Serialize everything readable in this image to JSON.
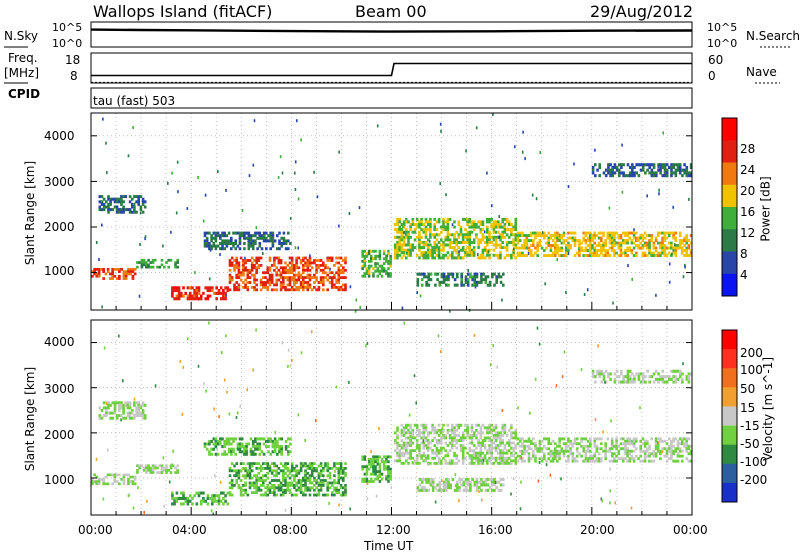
{
  "header": {
    "station": "Wallops Island (fitACF)",
    "beam": "Beam 00",
    "date": "29/Aug/2012"
  },
  "noise_panel": {
    "left_label": "N.Sky",
    "right_label": "N.Search",
    "tick_top": "10^5",
    "tick_bottom": "10^0"
  },
  "freq_panel": {
    "left_label": "Freq.",
    "left_unit": "[MHz]",
    "left_ticks": [
      "18",
      "8"
    ],
    "right_label": "Nave",
    "right_ticks": [
      "60",
      "0"
    ],
    "cpid_label": "CPID",
    "cpid_value": "tau (fast) 503"
  },
  "power_panel": {
    "ylabel": "Slant Range [km]",
    "yticks": [
      "4000",
      "3000",
      "2000",
      "1000"
    ],
    "colorbar_label": "Power [dB]",
    "colorbar_ticks": [
      "28",
      "24",
      "20",
      "16",
      "12",
      "8",
      "4"
    ],
    "colorbar_colors": [
      "#0a14f0",
      "#2846a8",
      "#2c7a46",
      "#3fae3a",
      "#f0c200",
      "#f07a10",
      "#e02010",
      "#ff0000"
    ]
  },
  "velocity_panel": {
    "ylabel": "Slant Range [km]",
    "yticks": [
      "4000",
      "3000",
      "2000",
      "1000"
    ],
    "colorbar_label": "Velocity [m s^-1]",
    "colorbar_ticks": [
      "200",
      "100",
      "50",
      "15",
      "-15",
      "-50",
      "-100",
      "-200"
    ],
    "colorbar_colors": [
      "#1830c8",
      "#2a60a0",
      "#2e8a40",
      "#70d040",
      "#c8c8c8",
      "#f0a030",
      "#f07020",
      "#ff3020",
      "#ff0000"
    ]
  },
  "x_axis": {
    "ticks": [
      "00:00",
      "04:00",
      "08:00",
      "12:00",
      "16:00",
      "20:00",
      "00:00"
    ],
    "label": "Time UT"
  },
  "chart_data": [
    {
      "type": "line",
      "name": "noise",
      "y_scale": "log",
      "ylim": [
        1,
        100000
      ],
      "x_range_hours": [
        0,
        24
      ],
      "series": [
        {
          "values": [
            [
              0,
              3000
            ],
            [
              2,
              2500
            ],
            [
              4,
              2200
            ],
            [
              8,
              1500
            ],
            [
              12,
              1200
            ],
            [
              16,
              1400
            ],
            [
              20,
              1800
            ],
            [
              24,
              2000
            ]
          ]
        }
      ]
    },
    {
      "type": "line",
      "name": "frequency",
      "ylim": [
        8,
        18
      ],
      "y2lim": [
        0,
        60
      ],
      "x_range_hours": [
        0,
        24
      ],
      "series": [
        {
          "values": [
            [
              0,
              10.5
            ],
            [
              12,
              10.5
            ],
            [
              12.1,
              14.5
            ],
            [
              24,
              14.5
            ]
          ]
        },
        {
          "values": [
            [
              0,
              1
            ],
            [
              24,
              1
            ]
          ]
        }
      ]
    },
    {
      "type": "heatmap",
      "name": "power",
      "x_range_hours": [
        0,
        24
      ],
      "ylim": [
        180,
        4500
      ],
      "color_range": [
        0,
        30
      ],
      "bands": [
        {
          "x": [
            0,
            1.8
          ],
          "y": [
            850,
            1100
          ],
          "value": 24
        },
        {
          "x": [
            1.8,
            3.5
          ],
          "y": [
            1100,
            1300
          ],
          "value": 12
        },
        {
          "x": [
            3.2,
            5.5
          ],
          "y": [
            400,
            700
          ],
          "value": 26
        },
        {
          "x": [
            5.5,
            10.2
          ],
          "y": [
            600,
            1350
          ],
          "value": 24
        },
        {
          "x": [
            4.5,
            8.0
          ],
          "y": [
            1500,
            1900
          ],
          "value": 8
        },
        {
          "x": [
            10.8,
            12.0
          ],
          "y": [
            900,
            1500
          ],
          "value": 14
        },
        {
          "x": [
            12.1,
            17.0
          ],
          "y": [
            1300,
            2200
          ],
          "value": 16
        },
        {
          "x": [
            17.0,
            24.0
          ],
          "y": [
            1350,
            1900
          ],
          "value": 18
        },
        {
          "x": [
            20.0,
            24.0
          ],
          "y": [
            3100,
            3400
          ],
          "value": 8
        },
        {
          "x": [
            0.3,
            2.2
          ],
          "y": [
            2300,
            2700
          ],
          "value": 8
        },
        {
          "x": [
            13.0,
            16.5
          ],
          "y": [
            700,
            1000
          ],
          "value": 10
        }
      ]
    },
    {
      "type": "heatmap",
      "name": "velocity",
      "x_range_hours": [
        0,
        24
      ],
      "ylim": [
        180,
        4500
      ],
      "color_range": [
        -200,
        200
      ],
      "bands": [
        {
          "x": [
            0,
            1.8
          ],
          "y": [
            850,
            1100
          ],
          "value": 0
        },
        {
          "x": [
            1.8,
            3.5
          ],
          "y": [
            1100,
            1300
          ],
          "value": 0
        },
        {
          "x": [
            3.2,
            5.5
          ],
          "y": [
            400,
            700
          ],
          "value": 30
        },
        {
          "x": [
            5.5,
            10.2
          ],
          "y": [
            600,
            1350
          ],
          "value": 30
        },
        {
          "x": [
            4.5,
            8.0
          ],
          "y": [
            1500,
            1900
          ],
          "value": 30
        },
        {
          "x": [
            10.8,
            12.0
          ],
          "y": [
            900,
            1500
          ],
          "value": 30
        },
        {
          "x": [
            12.1,
            17.0
          ],
          "y": [
            1300,
            2200
          ],
          "value": 0
        },
        {
          "x": [
            17.0,
            24.0
          ],
          "y": [
            1350,
            1900
          ],
          "value": 0
        },
        {
          "x": [
            20.0,
            24.0
          ],
          "y": [
            3100,
            3400
          ],
          "value": 0
        },
        {
          "x": [
            0.3,
            2.2
          ],
          "y": [
            2300,
            2700
          ],
          "value": 0
        },
        {
          "x": [
            13.0,
            16.5
          ],
          "y": [
            700,
            1000
          ],
          "value": 0
        }
      ]
    }
  ]
}
